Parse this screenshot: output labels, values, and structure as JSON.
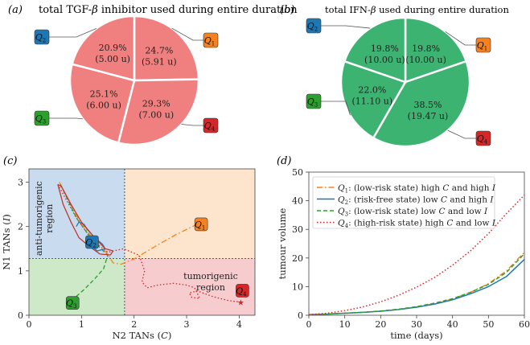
{
  "panels": {
    "a": {
      "letter": "(a)",
      "title_pre": "total TGF-",
      "title_greek": "β",
      "title_post": " inhibitor used during entire duration"
    },
    "b": {
      "letter": "(b)",
      "title_pre": "total  IFN-",
      "title_greek": "β",
      "title_post": " used during entire duration"
    },
    "c": {
      "letter": "(c)"
    },
    "d": {
      "letter": "(d)"
    }
  },
  "quadrant_colors": {
    "Q1": "#f5821f",
    "Q2": "#1f77b4",
    "Q3": "#2ca02c",
    "Q4": "#d62728"
  },
  "chart_data": [
    {
      "type": "pie",
      "panel": "a",
      "title": "total TGF-β inhibitor used during entire duration",
      "color": "#f08080",
      "slices": [
        {
          "quadrant": "Q1",
          "percent": "24.7%",
          "amount": "(5.91 u)",
          "value": 5.91
        },
        {
          "quadrant": "Q4",
          "percent": "29.3%",
          "amount": "(7.00 u)",
          "value": 7.0
        },
        {
          "quadrant": "Q3",
          "percent": "25.1%",
          "amount": "(6.00 u)",
          "value": 6.0
        },
        {
          "quadrant": "Q2",
          "percent": "20.9%",
          "amount": "(5.00 u)",
          "value": 5.0
        }
      ]
    },
    {
      "type": "pie",
      "panel": "b",
      "title": "total IFN-β used during entire duration",
      "color": "#3cb371",
      "slices": [
        {
          "quadrant": "Q1",
          "percent": "19.8%",
          "amount": "(10.00 u)",
          "value": 10.0
        },
        {
          "quadrant": "Q4",
          "percent": "38.5%",
          "amount": "(19.47 u)",
          "value": 19.47
        },
        {
          "quadrant": "Q3",
          "percent": "22.0%",
          "amount": "(11.10 u)",
          "value": 11.1
        },
        {
          "quadrant": "Q2",
          "percent": "19.8%",
          "amount": "(10.00 u)",
          "value": 10.0
        }
      ]
    },
    {
      "type": "line",
      "panel": "c",
      "xlabel_pre": "N2 TANs (",
      "xlabel_var": "C",
      "xlabel_post": ")",
      "ylabel_pre": "N1 TANs (",
      "ylabel_var": "I",
      "ylabel_post": ")",
      "xlim": [
        0,
        4.3
      ],
      "ylim": [
        0,
        3.3
      ],
      "xticks": [
        0,
        1,
        2,
        3,
        4
      ],
      "yticks": [
        0,
        1,
        2,
        3
      ],
      "thresholds": {
        "C": 1.82,
        "I": 1.28
      },
      "regions": [
        {
          "name": "anti",
          "lines": [
            "anti-tumorigenic",
            "region"
          ]
        },
        {
          "name": "tumor",
          "lines": [
            "tumorigenic",
            "region"
          ]
        }
      ],
      "region_colors": {
        "Q1": "#fde4cc",
        "Q2": "#c9dbee",
        "Q3": "#cde9c8",
        "Q4": "#f6cccf"
      },
      "endpoints": {
        "Q1": [
          3.2,
          2.05
        ],
        "Q2": [
          1.2,
          1.65
        ],
        "Q3": [
          0.83,
          0.35
        ],
        "Q4": [
          4.0,
          0.3
        ]
      },
      "trajectories": [
        {
          "quadrant": "Q4",
          "style": "dotted",
          "color": "#d62728",
          "points": [
            [
              0.55,
              2.95
            ],
            [
              0.9,
              2.2
            ],
            [
              1.2,
              1.7
            ],
            [
              1.5,
              1.42
            ],
            [
              1.8,
              1.5
            ],
            [
              2.1,
              1.35
            ],
            [
              2.2,
              1.0
            ],
            [
              2.15,
              0.75
            ],
            [
              2.25,
              0.62
            ],
            [
              2.45,
              0.68
            ],
            [
              2.75,
              0.72
            ],
            [
              3.0,
              0.68
            ],
            [
              3.15,
              0.62
            ],
            [
              3.2,
              0.5
            ],
            [
              3.25,
              0.38
            ],
            [
              3.1,
              0.4
            ],
            [
              3.05,
              0.5
            ],
            [
              3.2,
              0.55
            ],
            [
              3.5,
              0.42
            ],
            [
              3.8,
              0.33
            ],
            [
              4.0,
              0.3
            ]
          ]
        },
        {
          "quadrant": "Q1",
          "style": "dashdot",
          "color": "#f5821f",
          "points": [
            [
              0.58,
              3.0
            ],
            [
              0.9,
              2.25
            ],
            [
              1.2,
              1.75
            ],
            [
              1.5,
              1.38
            ],
            [
              1.6,
              1.18
            ],
            [
              1.75,
              1.15
            ],
            [
              2.0,
              1.27
            ],
            [
              2.4,
              1.55
            ],
            [
              2.8,
              1.82
            ],
            [
              3.2,
              2.05
            ]
          ]
        },
        {
          "quadrant": "Q3",
          "style": "dashed",
          "color": "#2ca02c",
          "points": [
            [
              0.6,
              2.95
            ],
            [
              0.9,
              2.2
            ],
            [
              1.2,
              1.7
            ],
            [
              1.5,
              1.35
            ],
            [
              1.42,
              1.05
            ],
            [
              1.25,
              0.82
            ],
            [
              1.05,
              0.58
            ],
            [
              0.83,
              0.35
            ]
          ]
        },
        {
          "quadrant": "Q2",
          "style": "solid",
          "color": "#1f77b4",
          "points": [
            [
              0.9,
              2.0
            ],
            [
              0.95,
              2.1
            ],
            [
              1.05,
              2.05
            ],
            [
              1.1,
              1.95
            ],
            [
              1.25,
              1.75
            ],
            [
              1.4,
              1.6
            ],
            [
              1.45,
              1.5
            ],
            [
              1.3,
              1.45
            ],
            [
              1.2,
              1.55
            ],
            [
              1.2,
              1.65
            ]
          ]
        },
        {
          "quadrant": "Q4",
          "style": "solid",
          "color": "#c0392b",
          "points": [
            [
              0.55,
              2.95
            ],
            [
              0.62,
              2.9
            ],
            [
              0.8,
              2.5
            ],
            [
              1.0,
              2.1
            ],
            [
              1.25,
              1.75
            ],
            [
              1.45,
              1.5
            ],
            [
              1.6,
              1.45
            ],
            [
              1.55,
              1.36
            ],
            [
              1.35,
              1.38
            ],
            [
              1.15,
              1.55
            ],
            [
              0.95,
              1.75
            ],
            [
              0.8,
              2.1
            ],
            [
              0.65,
              2.5
            ],
            [
              0.55,
              2.95
            ]
          ]
        }
      ]
    },
    {
      "type": "line",
      "panel": "d",
      "xlabel": "time (days)",
      "ylabel": "tumour volume",
      "xlim": [
        0,
        60
      ],
      "ylim": [
        0,
        50
      ],
      "xticks": [
        0,
        10,
        20,
        30,
        40,
        50,
        60
      ],
      "yticks": [
        0,
        10,
        20,
        30,
        40,
        50
      ],
      "series": [
        {
          "quadrant": "Q1",
          "style": "dashdot",
          "color": "#f5821f",
          "desc": ": (low-risk state) high ",
          "v1": "C",
          "mid": " and high ",
          "v2": "I",
          "x": [
            0,
            5,
            10,
            15,
            20,
            25,
            30,
            35,
            40,
            45,
            50,
            55,
            60
          ],
          "y": [
            0.2,
            0.4,
            0.7,
            1.0,
            1.4,
            2.0,
            2.9,
            4.0,
            5.7,
            8.0,
            11.0,
            15.5,
            22.0
          ]
        },
        {
          "quadrant": "Q2",
          "style": "solid",
          "color": "#1f77b4",
          "desc": ": (risk-free state) low ",
          "v1": "C",
          "mid": " and high ",
          "v2": "I",
          "x": [
            0,
            5,
            10,
            15,
            20,
            25,
            30,
            35,
            40,
            45,
            50,
            55,
            60
          ],
          "y": [
            0.2,
            0.4,
            0.7,
            1.0,
            1.4,
            2.0,
            2.8,
            3.9,
            5.4,
            7.5,
            10.0,
            13.5,
            19.5
          ]
        },
        {
          "quadrant": "Q3",
          "style": "dashed",
          "color": "#2ca02c",
          "desc": ": (low-risk state) low ",
          "v1": "C",
          "mid": " and low ",
          "v2": "I",
          "x": [
            0,
            5,
            10,
            15,
            20,
            25,
            30,
            35,
            40,
            45,
            50,
            55,
            60
          ],
          "y": [
            0.2,
            0.4,
            0.7,
            1.0,
            1.5,
            2.1,
            3.0,
            4.2,
            5.8,
            8.0,
            10.8,
            15.0,
            21.5
          ]
        },
        {
          "quadrant": "Q4",
          "style": "dotted",
          "color": "#d62728",
          "desc": ": (high-risk state) high ",
          "v1": "C",
          "mid": " and low ",
          "v2": "I",
          "x": [
            0,
            5,
            10,
            15,
            20,
            25,
            30,
            35,
            40,
            45,
            50,
            55,
            60
          ],
          "y": [
            0.2,
            0.7,
            1.6,
            2.9,
            4.7,
            7.0,
            9.8,
            13.2,
            17.5,
            22.5,
            28.5,
            35.5,
            42.0
          ]
        }
      ]
    }
  ]
}
